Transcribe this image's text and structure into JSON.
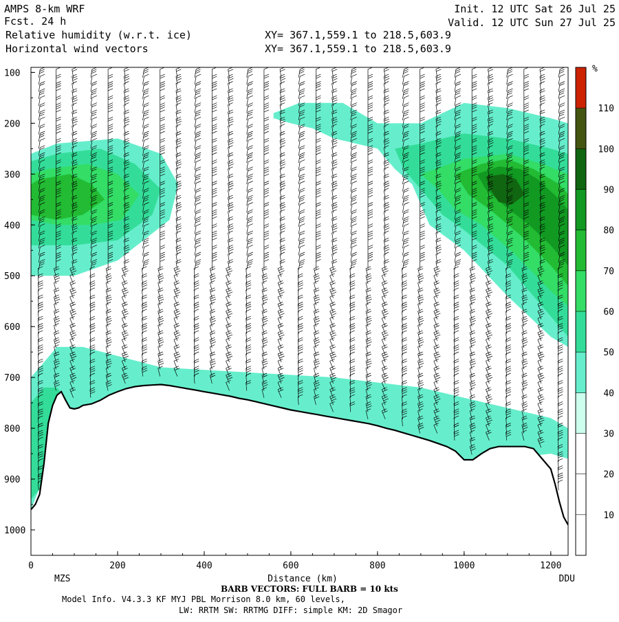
{
  "header": {
    "model": "AMPS 8-km WRF",
    "fcst": "Fcst.    24 h",
    "field1": "Relative humidity (w.r.t. ice)",
    "field2": "Horizontal wind vectors",
    "xy1": "XY= 367.1,559.1 to 218.5,603.9",
    "xy2": "XY= 367.1,559.1 to 218.5,603.9",
    "init": "Init. 12 UTC Sat 26 Jul 25",
    "valid": "Valid. 12 UTC Sun 27 Jul 25"
  },
  "footer": {
    "barb_note": "BARB VECTORS:  FULL BARB = 10 kts",
    "model_info": "Model Info. V4.3.3   KF     MYJ PBL  Morrison          8.0 km,  60 levels,",
    "physics": "LW: RRTM SW: RRTMG   DIFF: simple KM: 2D Smagor"
  },
  "chart_data": {
    "type": "heatmap",
    "xlabel": "Distance (km)",
    "ylabel": "",
    "xlim": [
      0,
      1240
    ],
    "ylim": [
      1050,
      90
    ],
    "x_ticks": [
      0,
      200,
      400,
      600,
      800,
      1000,
      1200
    ],
    "y_ticks": [
      100,
      200,
      300,
      400,
      500,
      600,
      700,
      800,
      900,
      1000
    ],
    "x_end_labels": {
      "left": "MZS",
      "right": "DDU"
    },
    "colorbar": {
      "unit": "%",
      "levels": [
        10,
        20,
        30,
        40,
        50,
        60,
        70,
        80,
        90,
        100,
        110
      ],
      "colors": [
        "#ffffff",
        "#ffffff",
        "#ffffff",
        "#ccffee",
        "#66eecc",
        "#33dd99",
        "#33dd66",
        "#22bb33",
        "#119922",
        "#116611",
        "#445511",
        "#cc2200"
      ]
    },
    "terrain": {
      "x": [
        0,
        10,
        20,
        30,
        40,
        50,
        60,
        70,
        80,
        90,
        100,
        110,
        120,
        140,
        160,
        180,
        200,
        220,
        240,
        260,
        280,
        300,
        320,
        340,
        360,
        380,
        400,
        420,
        440,
        460,
        480,
        500,
        520,
        540,
        560,
        580,
        600,
        620,
        640,
        660,
        680,
        700,
        720,
        740,
        760,
        780,
        800,
        820,
        840,
        860,
        880,
        900,
        920,
        940,
        960,
        980,
        1000,
        1020,
        1040,
        1060,
        1080,
        1100,
        1120,
        1140,
        1160,
        1180,
        1200,
        1210,
        1220,
        1230,
        1240
      ],
      "p": [
        960,
        950,
        930,
        870,
        790,
        755,
        735,
        728,
        745,
        760,
        762,
        760,
        755,
        752,
        745,
        735,
        728,
        722,
        718,
        716,
        715,
        714,
        716,
        719,
        722,
        725,
        728,
        731,
        734,
        737,
        741,
        744,
        748,
        752,
        756,
        760,
        764,
        767,
        770,
        773,
        776,
        779,
        782,
        785,
        788,
        791,
        795,
        800,
        804,
        809,
        814,
        819,
        824,
        830,
        836,
        845,
        862,
        862,
        850,
        840,
        836,
        836,
        836,
        836,
        840,
        860,
        880,
        910,
        945,
        975,
        990
      ]
    },
    "rh_regions": [
      {
        "value": 40,
        "x": [
          0,
          60,
          200,
          300,
          340,
          320,
          200,
          100,
          0
        ],
        "p": [
          260,
          240,
          230,
          260,
          320,
          390,
          470,
          500,
          500
        ]
      },
      {
        "value": 50,
        "x": [
          0,
          60,
          160,
          240,
          300,
          280,
          200,
          100,
          0
        ],
        "p": [
          275,
          260,
          250,
          280,
          330,
          380,
          430,
          440,
          440
        ]
      },
      {
        "value": 60,
        "x": [
          0,
          40,
          130,
          200,
          250,
          210,
          140,
          60,
          0
        ],
        "p": [
          300,
          290,
          280,
          300,
          340,
          390,
          400,
          400,
          390
        ]
      },
      {
        "value": 70,
        "x": [
          0,
          20,
          90,
          140,
          170,
          120,
          60,
          0
        ],
        "p": [
          320,
          310,
          300,
          320,
          350,
          380,
          390,
          380
        ]
      },
      {
        "value": 40,
        "x": [
          0,
          60,
          120,
          300,
          500,
          700,
          900,
          1000,
          1100,
          1200,
          1240,
          1240,
          1200,
          1000,
          800,
          600,
          400,
          200,
          80,
          0
        ],
        "p": [
          700,
          640,
          640,
          680,
          690,
          700,
          720,
          740,
          760,
          780,
          800,
          860,
          850,
          870,
          830,
          800,
          760,
          740,
          790,
          960
        ]
      },
      {
        "value": 50,
        "x": [
          0,
          30,
          60,
          80,
          100,
          80,
          40,
          0
        ],
        "p": [
          750,
          720,
          720,
          740,
          780,
          860,
          900,
          940
        ]
      },
      {
        "value": 40,
        "x": [
          560,
          620,
          720,
          800,
          900,
          1000,
          1100,
          1200,
          1240,
          1240,
          1200,
          1100,
          1000,
          920,
          880,
          840,
          800,
          700,
          650,
          600,
          560
        ],
        "p": [
          180,
          160,
          160,
          200,
          200,
          160,
          170,
          190,
          200,
          640,
          620,
          540,
          450,
          400,
          320,
          290,
          250,
          230,
          210,
          200,
          190
        ]
      },
      {
        "value": 50,
        "x": [
          840,
          900,
          1000,
          1100,
          1200,
          1240,
          1240,
          1200,
          1100,
          1000,
          950,
          900,
          860
        ],
        "p": [
          250,
          240,
          220,
          230,
          250,
          260,
          620,
          580,
          480,
          410,
          380,
          330,
          290
        ]
      },
      {
        "value": 60,
        "x": [
          900,
          1000,
          1100,
          1180,
          1240,
          1240,
          1200,
          1120,
          1040,
          980,
          940
        ],
        "p": [
          300,
          270,
          260,
          280,
          300,
          560,
          530,
          460,
          400,
          370,
          330
        ]
      },
      {
        "value": 70,
        "x": [
          980,
          1040,
          1100,
          1160,
          1220,
          1240,
          1240,
          1200,
          1130,
          1060,
          1010
        ],
        "p": [
          300,
          280,
          270,
          290,
          320,
          340,
          520,
          480,
          420,
          370,
          340
        ]
      },
      {
        "value": 80,
        "x": [
          1030,
          1080,
          1130,
          1170,
          1220,
          1240,
          1240,
          1200,
          1150,
          1090,
          1050
        ],
        "p": [
          300,
          285,
          290,
          310,
          350,
          370,
          480,
          440,
          400,
          360,
          330
        ]
      },
      {
        "value": 90,
        "x": [
          1050,
          1090,
          1120,
          1140,
          1110,
          1080,
          1060
        ],
        "p": [
          305,
          300,
          310,
          340,
          360,
          355,
          330
        ]
      }
    ]
  }
}
